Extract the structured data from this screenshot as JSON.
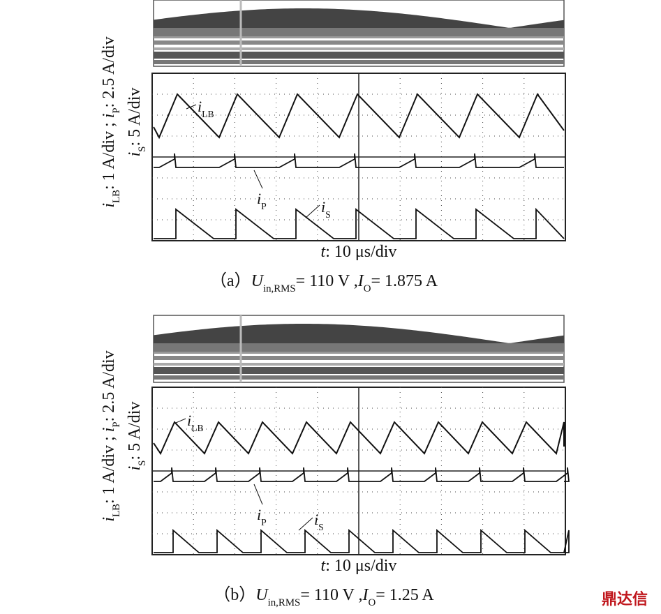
{
  "panels": [
    {
      "y_label_line1": [
        "i",
        "LB",
        ": 1 A/div ; ",
        "i",
        "P",
        ": 2.5 A/div"
      ],
      "y_label_line2": [
        "i",
        "S",
        ": 5 A/div"
      ],
      "label_lb": [
        "i",
        "LB"
      ],
      "label_p": [
        "i",
        "P"
      ],
      "label_s": [
        "i",
        "S"
      ],
      "x_label": [
        "t",
        ": 10 μs/div"
      ],
      "caption": [
        "（a）",
        "U",
        "in,RMS",
        "= 110 V ,",
        "I",
        "O",
        "= 1.875 A"
      ]
    },
    {
      "y_label_line1": [
        "i",
        "LB",
        ": 1 A/div ; ",
        "i",
        "P",
        ": 2.5 A/div"
      ],
      "y_label_line2": [
        "i",
        "S",
        ": 5 A/div"
      ],
      "label_lb": [
        "i",
        "LB"
      ],
      "label_p": [
        "i",
        "P"
      ],
      "label_s": [
        "i",
        "S"
      ],
      "x_label": [
        "t",
        ": 10 μs/div"
      ],
      "caption": [
        "（b）",
        "U",
        "in,RMS",
        "= 110 V ,",
        "I",
        "O",
        "= 1.25 A"
      ]
    }
  ],
  "watermark": "鼎达信"
}
